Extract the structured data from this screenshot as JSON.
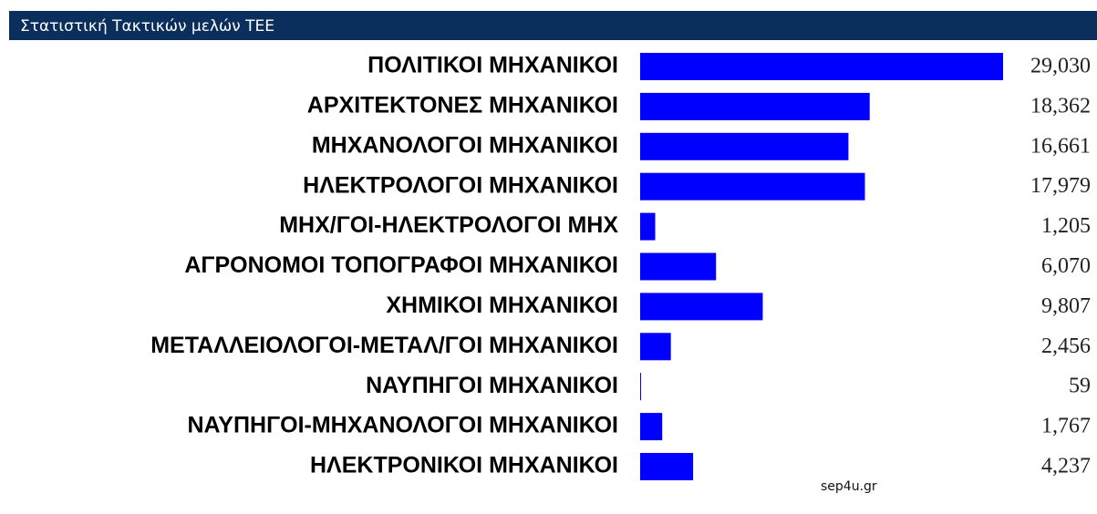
{
  "chart_data": {
    "type": "bar",
    "title": "Στατιστική Τακτικών μελών ΤΕΕ",
    "categories": [
      "ΠΟΛΙΤΙΚΟΙ ΜΗΧΑΝΙΚΟΙ",
      "ΑΡΧΙΤΕΚΤΟΝΕΣ ΜΗΧΑΝΙΚΟΙ",
      "ΜΗΧΑΝΟΛΟΓΟΙ ΜΗΧΑΝΙΚΟΙ",
      "ΗΛΕΚΤΡΟΛΟΓΟΙ ΜΗΧΑΝΙΚΟΙ",
      "ΜΗΧ/ΓΟΙ-ΗΛΕΚΤΡΟΛΟΓΟΙ ΜΗΧ",
      "ΑΓΡΟΝΟΜΟΙ ΤΟΠΟΓΡΑΦΟΙ ΜΗΧΑΝΙΚΟΙ",
      "ΧΗΜΙΚΟΙ ΜΗΧΑΝΙΚΟΙ",
      "ΜΕΤΑΛΛΕΙΟΛΟΓΟΙ-ΜΕΤΑΛ/ΓΟΙ ΜΗΧΑΝΙΚΟΙ",
      "ΝΑΥΠΗΓΟΙ ΜΗΧΑΝΙΚΟΙ",
      "ΝΑΥΠΗΓΟΙ-ΜΗΧΑΝΟΛΟΓΟΙ ΜΗΧΑΝΙΚΟΙ",
      "ΗΛΕΚΤΡΟΝΙΚΟΙ ΜΗΧΑΝΙΚΟΙ"
    ],
    "values": [
      29030,
      18362,
      16661,
      17979,
      1205,
      6070,
      9807,
      2456,
      59,
      1767,
      4237
    ],
    "value_labels": [
      "29,030",
      "18,362",
      "16,661",
      "17,979",
      "1,205",
      "6,070",
      "9,807",
      "2,456",
      "59",
      "1,767",
      "4,237"
    ],
    "color": "#0000ff",
    "annotation": "sep4u.gr"
  }
}
